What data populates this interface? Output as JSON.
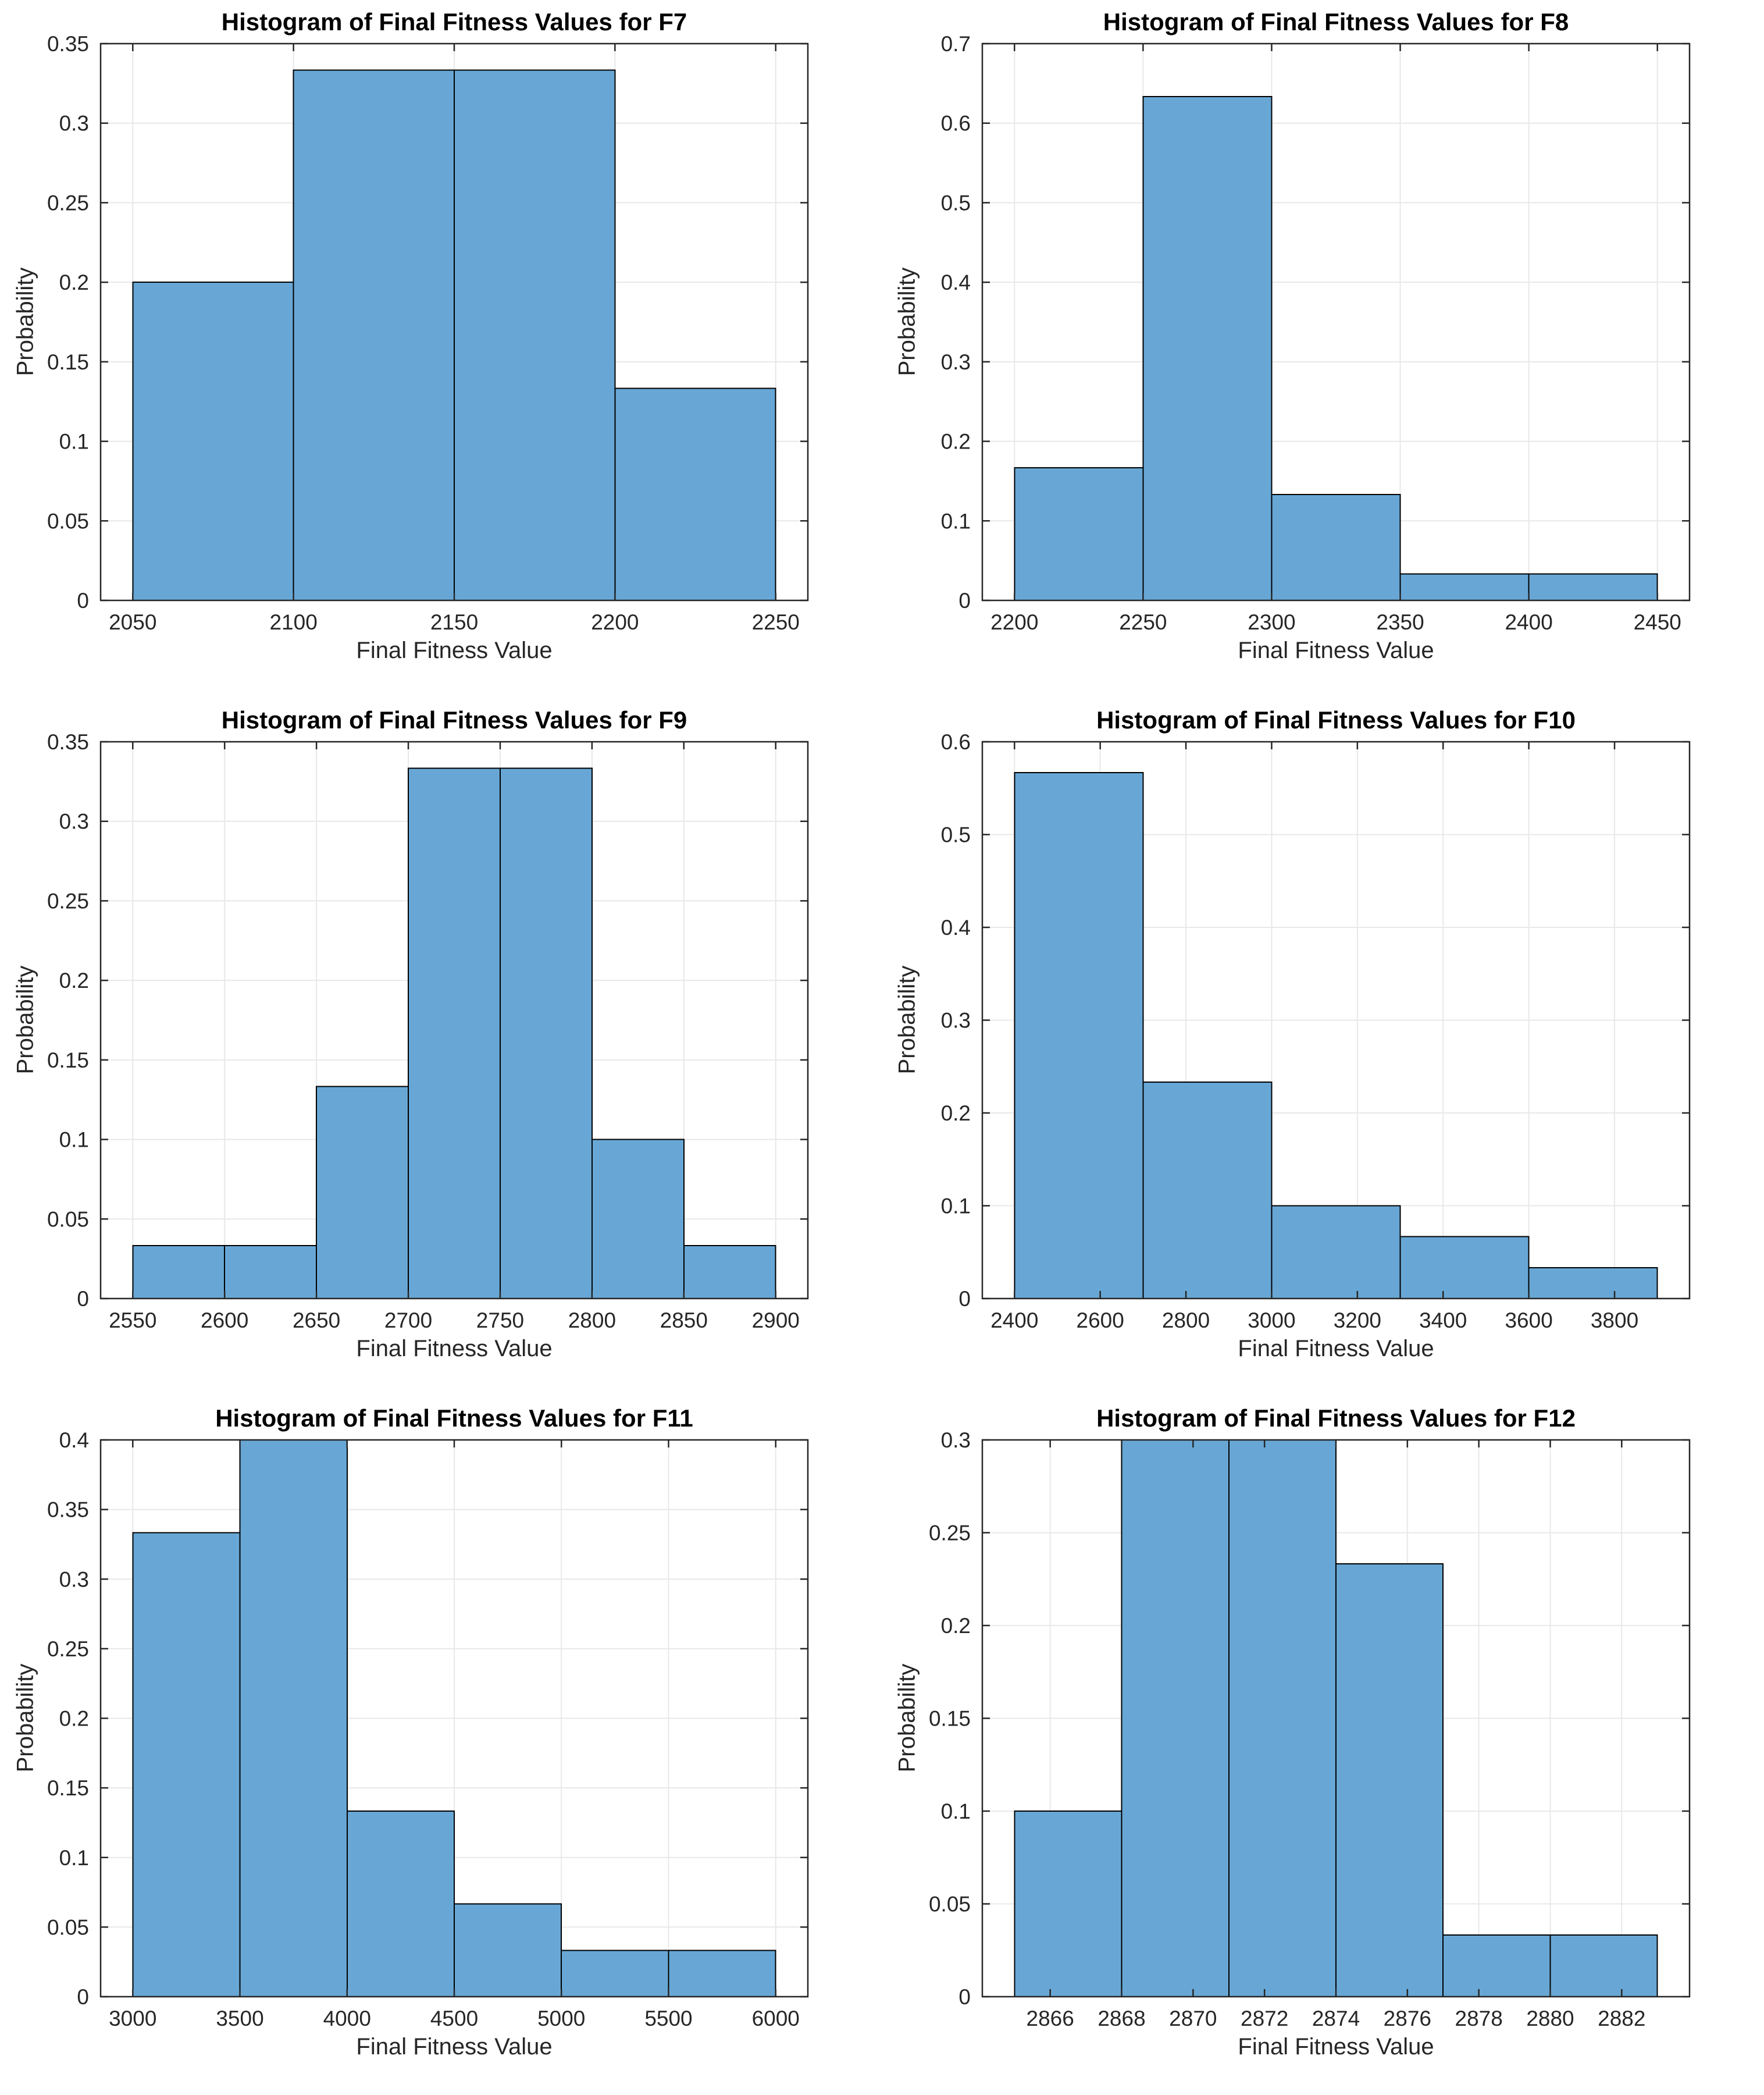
{
  "page": {
    "background": "#ffffff"
  },
  "colors": {
    "bar_fill": "#68A7D5",
    "bar_edge": "#000000",
    "grid": "#E8E8E8",
    "axis": "#262626",
    "tick_label": "#262626",
    "title": "#000000",
    "axis_label": "#262626"
  },
  "chart_data": [
    {
      "type": "bar",
      "title": "Histogram of Final Fitness Values for F7",
      "xlabel": "Final Fitness Value",
      "ylabel": "Probability",
      "bin_edges": [
        2050,
        2100,
        2150,
        2200,
        2250
      ],
      "values": [
        0.2,
        0.3333,
        0.3333,
        0.1333
      ],
      "xlim": [
        2040,
        2260
      ],
      "ylim": [
        0,
        0.35
      ],
      "xticks": [
        2050,
        2100,
        2150,
        2200,
        2250
      ],
      "xtick_labels": [
        "2050",
        "2100",
        "2150",
        "2200",
        "2250"
      ],
      "yticks": [
        0,
        0.05,
        0.1,
        0.15,
        0.2,
        0.25,
        0.3,
        0.35
      ],
      "ytick_labels": [
        "0",
        "0.05",
        "0.1",
        "0.15",
        "0.2",
        "0.25",
        "0.3",
        "0.35"
      ],
      "grid": true
    },
    {
      "type": "bar",
      "title": "Histogram of Final Fitness Values for F8",
      "xlabel": "Final Fitness Value",
      "ylabel": "Probability",
      "bin_edges": [
        2200,
        2250,
        2300,
        2350,
        2400,
        2450
      ],
      "values": [
        0.1667,
        0.6333,
        0.1333,
        0.0333,
        0.0333
      ],
      "xlim": [
        2187.5,
        2462.5
      ],
      "ylim": [
        0,
        0.7
      ],
      "xticks": [
        2200,
        2250,
        2300,
        2350,
        2400,
        2450
      ],
      "xtick_labels": [
        "2200",
        "2250",
        "2300",
        "2350",
        "2400",
        "2450"
      ],
      "yticks": [
        0,
        0.1,
        0.2,
        0.3,
        0.4,
        0.5,
        0.6,
        0.7
      ],
      "ytick_labels": [
        "0",
        "0.1",
        "0.2",
        "0.3",
        "0.4",
        "0.5",
        "0.6",
        "0.7"
      ],
      "grid": true
    },
    {
      "type": "bar",
      "title": "Histogram of Final Fitness Values for F9",
      "xlabel": "Final Fitness Value",
      "ylabel": "Probability",
      "bin_edges": [
        2550,
        2600,
        2650,
        2700,
        2750,
        2800,
        2850,
        2900
      ],
      "values": [
        0.0333,
        0.0333,
        0.1333,
        0.3333,
        0.3333,
        0.1,
        0.0333
      ],
      "xlim": [
        2532.5,
        2917.5
      ],
      "ylim": [
        0,
        0.35
      ],
      "xticks": [
        2550,
        2600,
        2650,
        2700,
        2750,
        2800,
        2850,
        2900
      ],
      "xtick_labels": [
        "2550",
        "2600",
        "2650",
        "2700",
        "2750",
        "2800",
        "2850",
        "2900"
      ],
      "yticks": [
        0,
        0.05,
        0.1,
        0.15,
        0.2,
        0.25,
        0.3,
        0.35
      ],
      "ytick_labels": [
        "0",
        "0.05",
        "0.1",
        "0.15",
        "0.2",
        "0.25",
        "0.3",
        "0.35"
      ],
      "grid": true
    },
    {
      "type": "bar",
      "title": "Histogram of Final Fitness Values for F10",
      "xlabel": "Final Fitness Value",
      "ylabel": "Probability",
      "bin_edges": [
        2400,
        2700,
        3000,
        3300,
        3600,
        3900
      ],
      "values": [
        0.5667,
        0.2333,
        0.1,
        0.0667,
        0.0333
      ],
      "xlim": [
        2325,
        3975
      ],
      "ylim": [
        0,
        0.6
      ],
      "xticks": [
        2400,
        2600,
        2800,
        3000,
        3200,
        3400,
        3600,
        3800
      ],
      "xtick_labels": [
        "2400",
        "2600",
        "2800",
        "3000",
        "3200",
        "3400",
        "3600",
        "3800"
      ],
      "yticks": [
        0,
        0.1,
        0.2,
        0.3,
        0.4,
        0.5,
        0.6
      ],
      "ytick_labels": [
        "0",
        "0.1",
        "0.2",
        "0.3",
        "0.4",
        "0.5",
        "0.6"
      ],
      "grid": true
    },
    {
      "type": "bar",
      "title": "Histogram of Final Fitness Values for F11",
      "xlabel": "Final Fitness Value",
      "ylabel": "Probability",
      "bin_edges": [
        3000,
        3500,
        4000,
        4500,
        5000,
        5500,
        6000
      ],
      "values": [
        0.3333,
        0.4,
        0.1333,
        0.0667,
        0.0333,
        0.0333
      ],
      "xlim": [
        2850,
        6150
      ],
      "ylim": [
        0,
        0.4
      ],
      "xticks": [
        3000,
        3500,
        4000,
        4500,
        5000,
        5500,
        6000
      ],
      "xtick_labels": [
        "3000",
        "3500",
        "4000",
        "4500",
        "5000",
        "5500",
        "6000"
      ],
      "yticks": [
        0,
        0.05,
        0.1,
        0.15,
        0.2,
        0.25,
        0.3,
        0.35,
        0.4
      ],
      "ytick_labels": [
        "0",
        "0.05",
        "0.1",
        "0.15",
        "0.2",
        "0.25",
        "0.3",
        "0.35",
        "0.4"
      ],
      "grid": true
    },
    {
      "type": "bar",
      "title": "Histogram of Final Fitness Values for F12",
      "xlabel": "Final Fitness Value",
      "ylabel": "Probability",
      "bin_edges": [
        2865,
        2868,
        2871,
        2874,
        2877,
        2880,
        2883
      ],
      "values": [
        0.1,
        0.3,
        0.3,
        0.2333,
        0.0333,
        0.0333
      ],
      "xlim": [
        2864.1,
        2883.9
      ],
      "ylim": [
        0,
        0.3
      ],
      "xticks": [
        2866,
        2868,
        2870,
        2872,
        2874,
        2876,
        2878,
        2880,
        2882
      ],
      "xtick_labels": [
        "2866",
        "2868",
        "2870",
        "2872",
        "2874",
        "2876",
        "2878",
        "2880",
        "2882"
      ],
      "yticks": [
        0,
        0.05,
        0.1,
        0.15,
        0.2,
        0.25,
        0.3
      ],
      "ytick_labels": [
        "0",
        "0.05",
        "0.1",
        "0.15",
        "0.2",
        "0.25",
        "0.3"
      ],
      "grid": true
    }
  ]
}
